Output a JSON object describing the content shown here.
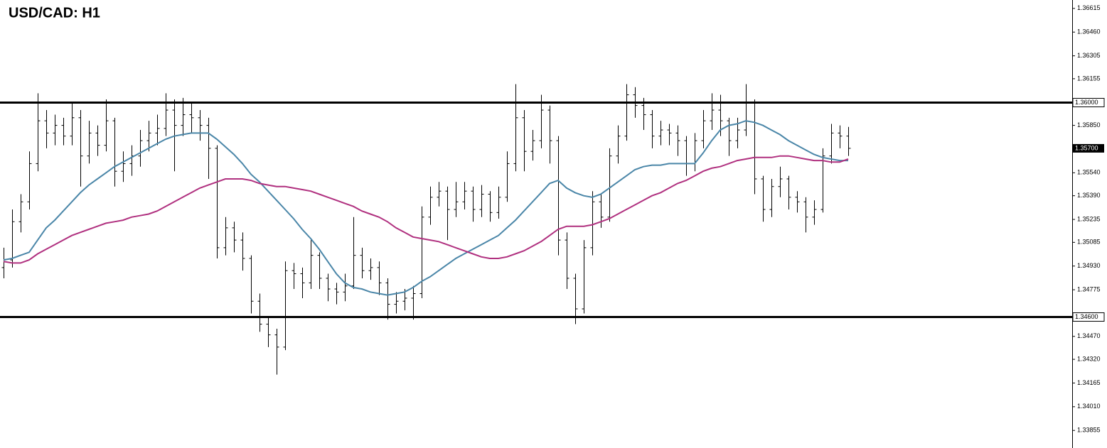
{
  "chart_data": {
    "type": "ohlc",
    "title": "USD/CAD: H1",
    "ohlc": [
      [
        1.3492,
        1.3505,
        1.3485,
        1.3497
      ],
      [
        1.3497,
        1.353,
        1.3492,
        1.3522
      ],
      [
        1.3522,
        1.354,
        1.3515,
        1.3535
      ],
      [
        1.3535,
        1.3568,
        1.353,
        1.356
      ],
      [
        1.356,
        1.3606,
        1.3555,
        1.3588
      ],
      [
        1.3588,
        1.3595,
        1.357,
        1.358
      ],
      [
        1.358,
        1.3592,
        1.3572,
        1.3585
      ],
      [
        1.3585,
        1.359,
        1.3572,
        1.3578
      ],
      [
        1.3578,
        1.36,
        1.3572,
        1.359
      ],
      [
        1.359,
        1.3595,
        1.3545,
        1.3565
      ],
      [
        1.3565,
        1.3588,
        1.356,
        1.358
      ],
      [
        1.358,
        1.3585,
        1.3565,
        1.3572
      ],
      [
        1.3572,
        1.3602,
        1.3568,
        1.3588
      ],
      [
        1.3588,
        1.359,
        1.3545,
        1.3555
      ],
      [
        1.3555,
        1.3568,
        1.3548,
        1.356
      ],
      [
        1.356,
        1.3572,
        1.3552,
        1.3565
      ],
      [
        1.3565,
        1.3582,
        1.3558,
        1.3575
      ],
      [
        1.3575,
        1.3588,
        1.3568,
        1.358
      ],
      [
        1.358,
        1.3592,
        1.3572,
        1.3583
      ],
      [
        1.3583,
        1.3606,
        1.3578,
        1.3595
      ],
      [
        1.3595,
        1.3602,
        1.3555,
        1.3585
      ],
      [
        1.3585,
        1.3603,
        1.3578,
        1.3592
      ],
      [
        1.3592,
        1.36,
        1.358,
        1.359
      ],
      [
        1.359,
        1.3595,
        1.3575,
        1.3585
      ],
      [
        1.3585,
        1.359,
        1.355,
        1.357
      ],
      [
        1.357,
        1.3572,
        1.3498,
        1.3505
      ],
      [
        1.3505,
        1.3525,
        1.35,
        1.3518
      ],
      [
        1.3518,
        1.3522,
        1.3502,
        1.351
      ],
      [
        1.351,
        1.3515,
        1.349,
        1.3498
      ],
      [
        1.3498,
        1.35,
        1.3462,
        1.347
      ],
      [
        1.347,
        1.3475,
        1.345,
        1.3455
      ],
      [
        1.3455,
        1.346,
        1.344,
        1.3448
      ],
      [
        1.3448,
        1.3452,
        1.3422,
        1.344
      ],
      [
        1.344,
        1.3496,
        1.3438,
        1.349
      ],
      [
        1.349,
        1.3495,
        1.3478,
        1.3488
      ],
      [
        1.3488,
        1.3492,
        1.3472,
        1.3482
      ],
      [
        1.3482,
        1.351,
        1.3478,
        1.35
      ],
      [
        1.35,
        1.3502,
        1.3478,
        1.3485
      ],
      [
        1.3485,
        1.3488,
        1.347,
        1.3478
      ],
      [
        1.3478,
        1.3482,
        1.3468,
        1.3476
      ],
      [
        1.3476,
        1.3488,
        1.347,
        1.348
      ],
      [
        1.348,
        1.3525,
        1.3478,
        1.35
      ],
      [
        1.35,
        1.3505,
        1.3485,
        1.349
      ],
      [
        1.349,
        1.3498,
        1.3484,
        1.3492
      ],
      [
        1.3492,
        1.3496,
        1.3474,
        1.3482
      ],
      [
        1.3482,
        1.3485,
        1.3458,
        1.3468
      ],
      [
        1.3468,
        1.3476,
        1.3462,
        1.347
      ],
      [
        1.347,
        1.3478,
        1.3464,
        1.3472
      ],
      [
        1.3472,
        1.348,
        1.3458,
        1.3475
      ],
      [
        1.3475,
        1.3532,
        1.3472,
        1.3525
      ],
      [
        1.3525,
        1.3545,
        1.352,
        1.3538
      ],
      [
        1.3538,
        1.3548,
        1.3532,
        1.3542
      ],
      [
        1.3542,
        1.3545,
        1.351,
        1.353
      ],
      [
        1.353,
        1.3548,
        1.3525,
        1.3535
      ],
      [
        1.3535,
        1.3548,
        1.353,
        1.3542
      ],
      [
        1.3542,
        1.3545,
        1.3522,
        1.353
      ],
      [
        1.353,
        1.3546,
        1.3525,
        1.354
      ],
      [
        1.354,
        1.3542,
        1.3522,
        1.3528
      ],
      [
        1.3528,
        1.3545,
        1.3524,
        1.3538
      ],
      [
        1.3538,
        1.3568,
        1.3535,
        1.356
      ],
      [
        1.356,
        1.3612,
        1.3555,
        1.359
      ],
      [
        1.359,
        1.3595,
        1.3555,
        1.3568
      ],
      [
        1.3568,
        1.3582,
        1.3562,
        1.3575
      ],
      [
        1.3575,
        1.3605,
        1.357,
        1.3595
      ],
      [
        1.3595,
        1.3598,
        1.356,
        1.3575
      ],
      [
        1.3575,
        1.3578,
        1.35,
        1.351
      ],
      [
        1.351,
        1.3515,
        1.3478,
        1.3485
      ],
      [
        1.3485,
        1.3488,
        1.3455,
        1.3465
      ],
      [
        1.3465,
        1.351,
        1.3462,
        1.3505
      ],
      [
        1.3505,
        1.3542,
        1.35,
        1.3535
      ],
      [
        1.3535,
        1.354,
        1.3518,
        1.3525
      ],
      [
        1.3525,
        1.357,
        1.3522,
        1.3565
      ],
      [
        1.3565,
        1.3585,
        1.356,
        1.3578
      ],
      [
        1.3578,
        1.3612,
        1.3575,
        1.3605
      ],
      [
        1.3605,
        1.361,
        1.359,
        1.3598
      ],
      [
        1.3598,
        1.3603,
        1.3582,
        1.3592
      ],
      [
        1.3592,
        1.3595,
        1.357,
        1.3578
      ],
      [
        1.3578,
        1.3588,
        1.3572,
        1.3582
      ],
      [
        1.3582,
        1.3586,
        1.3572,
        1.358
      ],
      [
        1.358,
        1.3585,
        1.3565,
        1.3575
      ],
      [
        1.3575,
        1.3578,
        1.3552,
        1.356
      ],
      [
        1.356,
        1.358,
        1.3555,
        1.3575
      ],
      [
        1.3575,
        1.3595,
        1.357,
        1.3588
      ],
      [
        1.3588,
        1.3606,
        1.3582,
        1.3595
      ],
      [
        1.3595,
        1.3605,
        1.3578,
        1.3588
      ],
      [
        1.3588,
        1.359,
        1.3565,
        1.3575
      ],
      [
        1.3575,
        1.359,
        1.357,
        1.3582
      ],
      [
        1.3582,
        1.3612,
        1.3578,
        1.36
      ],
      [
        1.36,
        1.3602,
        1.354,
        1.355
      ],
      [
        1.355,
        1.3552,
        1.3522,
        1.353
      ],
      [
        1.353,
        1.355,
        1.3525,
        1.3545
      ],
      [
        1.3545,
        1.3558,
        1.3538,
        1.355
      ],
      [
        1.355,
        1.3552,
        1.353,
        1.3538
      ],
      [
        1.3538,
        1.3542,
        1.3528,
        1.3535
      ],
      [
        1.3535,
        1.3538,
        1.3515,
        1.3525
      ],
      [
        1.3525,
        1.3536,
        1.352,
        1.353
      ],
      [
        1.353,
        1.357,
        1.3528,
        1.3565
      ],
      [
        1.3565,
        1.3586,
        1.356,
        1.358
      ],
      [
        1.358,
        1.3585,
        1.357,
        1.3578
      ],
      [
        1.3578,
        1.3584,
        1.3565,
        1.357
      ]
    ],
    "bar_color": "#000000",
    "series": [
      {
        "color": "#4a86a8",
        "values": [
          1.3497,
          1.3498,
          1.35,
          1.3502,
          1.351,
          1.3518,
          1.3523,
          1.3529,
          1.3535,
          1.3541,
          1.3546,
          1.355,
          1.3554,
          1.3558,
          1.3561,
          1.3564,
          1.3567,
          1.357,
          1.3573,
          1.3576,
          1.3578,
          1.3579,
          1.358,
          1.358,
          1.358,
          1.3576,
          1.3571,
          1.3566,
          1.356,
          1.3553,
          1.3548,
          1.3542,
          1.3536,
          1.353,
          1.3524,
          1.3517,
          1.3511,
          1.3504,
          1.3496,
          1.3488,
          1.3482,
          1.3479,
          1.3478,
          1.3476,
          1.3475,
          1.3474,
          1.3475,
          1.3476,
          1.3479,
          1.3483,
          1.3486,
          1.349,
          1.3494,
          1.3498,
          1.3501,
          1.3504,
          1.3507,
          1.351,
          1.3513,
          1.3518,
          1.3523,
          1.3529,
          1.3535,
          1.3541,
          1.3547,
          1.3549,
          1.3544,
          1.3541,
          1.3539,
          1.3538,
          1.354,
          1.3544,
          1.3548,
          1.3552,
          1.3556,
          1.3558,
          1.3559,
          1.3559,
          1.356,
          1.356,
          1.356,
          1.356,
          1.3567,
          1.3575,
          1.3582,
          1.3585,
          1.3586,
          1.3588,
          1.3587,
          1.3585,
          1.3582,
          1.3579,
          1.3575,
          1.3572,
          1.3569,
          1.3566,
          1.3564,
          1.3563,
          1.3562,
          1.3562
        ]
      },
      {
        "color": "#b0307f",
        "values": [
          1.3496,
          1.3495,
          1.3495,
          1.3497,
          1.3501,
          1.3504,
          1.3507,
          1.351,
          1.3513,
          1.3515,
          1.3517,
          1.3519,
          1.3521,
          1.3522,
          1.3523,
          1.3525,
          1.3526,
          1.3527,
          1.3529,
          1.3532,
          1.3535,
          1.3538,
          1.3541,
          1.3544,
          1.3546,
          1.3548,
          1.355,
          1.355,
          1.355,
          1.3549,
          1.3547,
          1.3546,
          1.3545,
          1.3545,
          1.3544,
          1.3543,
          1.3542,
          1.354,
          1.3538,
          1.3536,
          1.3534,
          1.3532,
          1.3529,
          1.3527,
          1.3525,
          1.3522,
          1.3518,
          1.3515,
          1.3512,
          1.3511,
          1.351,
          1.3509,
          1.3507,
          1.3505,
          1.3503,
          1.3501,
          1.3499,
          1.3498,
          1.3498,
          1.3499,
          1.3501,
          1.3503,
          1.3506,
          1.3509,
          1.3513,
          1.3517,
          1.3519,
          1.3519,
          1.3519,
          1.352,
          1.3522,
          1.3524,
          1.3527,
          1.353,
          1.3533,
          1.3536,
          1.3539,
          1.3541,
          1.3544,
          1.3547,
          1.3549,
          1.3552,
          1.3555,
          1.3557,
          1.3558,
          1.356,
          1.3562,
          1.3563,
          1.3564,
          1.3564,
          1.3564,
          1.3565,
          1.3565,
          1.3564,
          1.3563,
          1.3562,
          1.3562,
          1.3561,
          1.3561,
          1.3563
        ]
      }
    ],
    "hlines": [
      {
        "value": 1.36,
        "label": "1.36000"
      },
      {
        "value": 1.346,
        "label": "1.34600"
      }
    ],
    "last_price": {
      "value": 1.357,
      "label": "1.35700"
    },
    "ylim": [
      1.3374,
      1.3667
    ],
    "yticks": [
      1.36615,
      {
        "value": 1.3646,
        "label": "1.36460"
      },
      1.36305,
      1.36155,
      {
        "value": 1.3585,
        "label": "1.35850"
      },
      {
        "value": 1.3554,
        "label": "1.35540"
      },
      {
        "value": 1.3539,
        "label": "1.35390"
      },
      1.35235,
      1.35085,
      {
        "value": 1.3493,
        "label": "1.34930"
      },
      1.34775,
      {
        "value": 1.3447,
        "label": "1.34470"
      },
      {
        "value": 1.3432,
        "label": "1.34320"
      },
      1.34165,
      {
        "value": 1.3401,
        "label": "1.34010"
      },
      1.33855
    ]
  }
}
